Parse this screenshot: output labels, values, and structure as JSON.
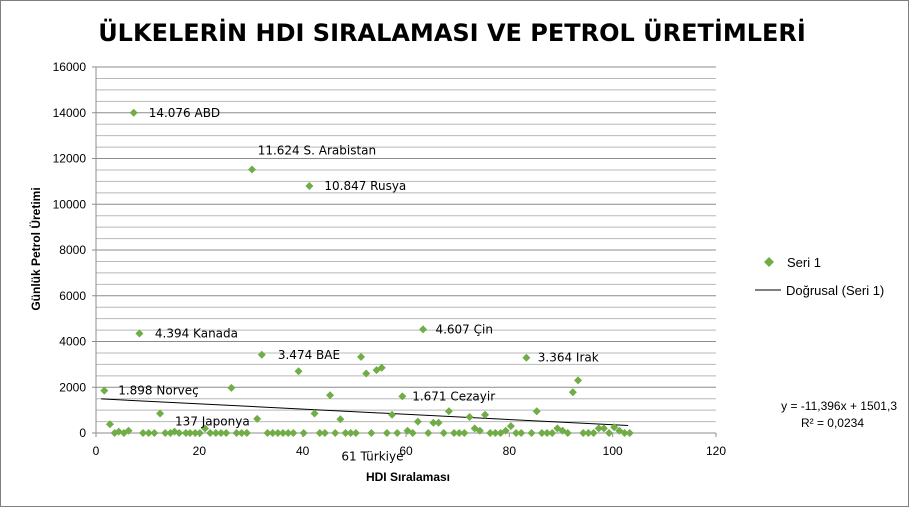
{
  "chart_data": {
    "type": "scatter",
    "title": "ÜLKELERİN HDI SIRALAMASI VE PETROL ÜRETİMLERİ",
    "xlabel": "HDI Sıralaması",
    "ylabel": "Günlük Petrol Üretimi",
    "xlim": [
      0,
      120
    ],
    "ylim": [
      0,
      16000
    ],
    "x_ticks": [
      "0",
      "20",
      "40",
      "60",
      "80",
      "100",
      "120"
    ],
    "y_ticks": [
      "0",
      "2000",
      "4000",
      "6000",
      "8000",
      "10000",
      "12000",
      "14000",
      "16000"
    ],
    "grid": true,
    "marker_color": "#70ad47",
    "trend_color": "#000000",
    "legend": {
      "placement": "right",
      "series_label": "Seri 1",
      "trend_label": "Doğrusal (Seri 1)"
    },
    "trendline": {
      "slope": -11.396,
      "intercept": 1501.3,
      "x_range": [
        1,
        103
      ],
      "equation": "y = -11,396x  + 1501,3",
      "r2": "R² = 0,0234"
    },
    "annotations": [
      {
        "text": "14.076  ABD",
        "x": 10.2,
        "y": 14000
      },
      {
        "text": "11.624  S. Arabistan",
        "x": 31.3,
        "y": 12350
      },
      {
        "text": "10.847  Rusya",
        "x": 44.2,
        "y": 10800
      },
      {
        "text": "4.394  Kanada",
        "x": 11.4,
        "y": 4350
      },
      {
        "text": "4.607  Çin",
        "x": 65.7,
        "y": 4530
      },
      {
        "text": "3.474  BAE",
        "x": 35.2,
        "y": 3400
      },
      {
        "text": "3.364  Irak",
        "x": 85.5,
        "y": 3300
      },
      {
        "text": "1.898  Norveç",
        "x": 4.3,
        "y": 1850
      },
      {
        "text": "1.671  Cezayir",
        "x": 61.2,
        "y": 1600
      },
      {
        "text": "137  Japonya",
        "x": 15.3,
        "y": 500
      },
      {
        "text": "61  Türkiye",
        "x": 47.5,
        "y": -1030
      }
    ],
    "series": [
      {
        "name": "Seri 1",
        "x": [
          1.6,
          2.7,
          3.6,
          4.4,
          5.4,
          6.3,
          7.3,
          8.4,
          9.1,
          10.2,
          11.3,
          12.4,
          13.4,
          14.4,
          15.2,
          16.1,
          17.4,
          18.2,
          19.2,
          20.1,
          21.1,
          22.1,
          23.2,
          24.2,
          25.2,
          26.2,
          27.2,
          28.2,
          29.2,
          30.2,
          31.2,
          32.1,
          33.2,
          34.2,
          35.2,
          36.2,
          37.2,
          38.2,
          39.2,
          40.2,
          41.3,
          42.3,
          43.3,
          44.3,
          45.3,
          46.3,
          47.3,
          48.3,
          49.3,
          50.3,
          51.3,
          52.3,
          53.3,
          54.3,
          55.3,
          56.3,
          57.3,
          58.3,
          59.3,
          60.3,
          61.3,
          62.3,
          63.3,
          64.3,
          65.3,
          66.3,
          67.3,
          68.3,
          69.3,
          70.3,
          71.3,
          72.3,
          73.3,
          74.3,
          75.3,
          76.3,
          77.3,
          78.3,
          79.3,
          80.3,
          81.3,
          82.3,
          83.3,
          84.3,
          85.3,
          86.3,
          87.3,
          88.3,
          89.3,
          90.3,
          91.3,
          92.3,
          93.3,
          94.3,
          95.3,
          96.3,
          97.3,
          98.3,
          99.3,
          100.3,
          101.3,
          102.3,
          103.3
        ],
        "y": [
          1850,
          380,
          0,
          60,
          0,
          100,
          14000,
          4350,
          0,
          0,
          0,
          850,
          0,
          0,
          60,
          0,
          0,
          0,
          0,
          0,
          200,
          0,
          0,
          0,
          0,
          1970,
          0,
          0,
          0,
          11520,
          620,
          3420,
          0,
          0,
          0,
          0,
          0,
          0,
          2700,
          0,
          10800,
          850,
          0,
          0,
          1650,
          0,
          600,
          0,
          0,
          0,
          3330,
          2600,
          0,
          2750,
          2850,
          0,
          800,
          0,
          1600,
          100,
          0,
          500,
          4530,
          0,
          450,
          450,
          0,
          950,
          0,
          0,
          0,
          700,
          200,
          100,
          800,
          0,
          0,
          0,
          100,
          300,
          0,
          0,
          3290,
          0,
          950,
          0,
          0,
          0,
          200,
          100,
          0,
          1780,
          2300,
          0,
          0,
          0,
          200,
          200,
          0,
          250,
          100,
          0,
          0
        ]
      }
    ]
  }
}
